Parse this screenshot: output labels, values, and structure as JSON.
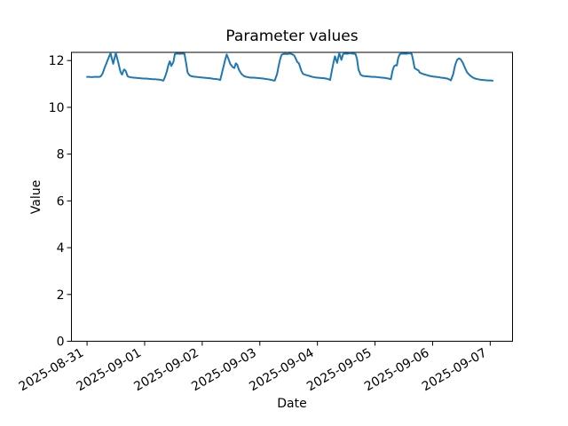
{
  "figure": {
    "background": "#ffffff"
  },
  "chart_data": {
    "type": "line",
    "title": "Parameter values",
    "xlabel": "Date",
    "ylabel": "Value",
    "x_unit": "hours since 2025-08-31 00:00",
    "x_tick_hours": [
      0,
      24,
      48,
      72,
      96,
      120,
      144,
      168
    ],
    "x_tick_labels": [
      "2025-08-31",
      "2025-09-01",
      "2025-09-02",
      "2025-09-03",
      "2025-09-04",
      "2025-09-05",
      "2025-09-06",
      "2025-09-07"
    ],
    "x_tick_rotation_deg": 30,
    "y_ticks": [
      0,
      2,
      4,
      6,
      8,
      10,
      12
    ],
    "ylim": [
      0,
      12.35
    ],
    "xlim_hours": [
      -6.5,
      177.3
    ],
    "grid": false,
    "line_color": "#1f77b4",
    "line_width": 2,
    "series": [
      {
        "points": [
          [
            0,
            11.3
          ],
          [
            1,
            11.3
          ],
          [
            2,
            11.29
          ],
          [
            3,
            11.3
          ],
          [
            4,
            11.3
          ],
          [
            5,
            11.3
          ],
          [
            5.7,
            11.32
          ],
          [
            6.5,
            11.45
          ],
          [
            7,
            11.6
          ],
          [
            7.5,
            11.74
          ],
          [
            8,
            11.86
          ],
          [
            8.5,
            12.0
          ],
          [
            9,
            12.12
          ],
          [
            9.4,
            12.22
          ],
          [
            9.8,
            12.31
          ],
          [
            10.3,
            12.1
          ],
          [
            10.9,
            11.86
          ],
          [
            11.4,
            12.08
          ],
          [
            12,
            12.32
          ],
          [
            12.5,
            12.12
          ],
          [
            13.1,
            11.88
          ],
          [
            13.6,
            11.66
          ],
          [
            14,
            11.5
          ],
          [
            14.6,
            11.4
          ],
          [
            15.1,
            11.55
          ],
          [
            15.5,
            11.62
          ],
          [
            16.1,
            11.56
          ],
          [
            16.6,
            11.42
          ],
          [
            16.9,
            11.33
          ],
          [
            17.5,
            11.3
          ],
          [
            18.5,
            11.28
          ],
          [
            19.5,
            11.27
          ],
          [
            20.5,
            11.26
          ],
          [
            21.5,
            11.25
          ],
          [
            22.5,
            11.24
          ],
          [
            23.5,
            11.23
          ],
          [
            24.5,
            11.23
          ],
          [
            25.5,
            11.22
          ],
          [
            26.5,
            11.21
          ],
          [
            27.5,
            11.2
          ],
          [
            28.5,
            11.2
          ],
          [
            29.5,
            11.19
          ],
          [
            30.5,
            11.18
          ],
          [
            31.2,
            11.16
          ],
          [
            31.8,
            11.14
          ],
          [
            32.5,
            11.3
          ],
          [
            33.2,
            11.52
          ],
          [
            33.9,
            11.81
          ],
          [
            34.5,
            11.97
          ],
          [
            35.1,
            11.77
          ],
          [
            36,
            11.94
          ],
          [
            36.6,
            12.28
          ],
          [
            37.5,
            12.3
          ],
          [
            38.5,
            12.29
          ],
          [
            39.5,
            12.3
          ],
          [
            40.6,
            12.29
          ],
          [
            41.2,
            11.94
          ],
          [
            41.9,
            11.49
          ],
          [
            42.7,
            11.37
          ],
          [
            43.5,
            11.33
          ],
          [
            44.5,
            11.31
          ],
          [
            45.5,
            11.3
          ],
          [
            46.5,
            11.29
          ],
          [
            47.5,
            11.28
          ],
          [
            48.5,
            11.27
          ],
          [
            49.5,
            11.26
          ],
          [
            50.5,
            11.25
          ],
          [
            51.5,
            11.24
          ],
          [
            52.5,
            11.22
          ],
          [
            53.5,
            11.21
          ],
          [
            54.5,
            11.2
          ],
          [
            55.5,
            11.17
          ],
          [
            56.4,
            11.55
          ],
          [
            57,
            11.8
          ],
          [
            57.6,
            12.05
          ],
          [
            58.2,
            12.26
          ],
          [
            59,
            12.05
          ],
          [
            59.7,
            11.85
          ],
          [
            60.7,
            11.72
          ],
          [
            61.4,
            11.68
          ],
          [
            62,
            11.88
          ],
          [
            62.6,
            11.82
          ],
          [
            63.3,
            11.6
          ],
          [
            64.4,
            11.42
          ],
          [
            65.5,
            11.33
          ],
          [
            66.5,
            11.3
          ],
          [
            67.5,
            11.28
          ],
          [
            68.5,
            11.27
          ],
          [
            69.5,
            11.27
          ],
          [
            70.5,
            11.26
          ],
          [
            71.5,
            11.25
          ],
          [
            72.5,
            11.24
          ],
          [
            73.5,
            11.23
          ],
          [
            74.5,
            11.21
          ],
          [
            75.5,
            11.2
          ],
          [
            76.5,
            11.18
          ],
          [
            77.3,
            11.16
          ],
          [
            78.2,
            11.14
          ],
          [
            79.2,
            11.43
          ],
          [
            79.8,
            11.75
          ],
          [
            80.4,
            12.03
          ],
          [
            81,
            12.23
          ],
          [
            81.6,
            12.28
          ],
          [
            82.5,
            12.29
          ],
          [
            83.5,
            12.28
          ],
          [
            84.5,
            12.3
          ],
          [
            85.5,
            12.27
          ],
          [
            86.3,
            12.22
          ],
          [
            86.8,
            12.12
          ],
          [
            87.6,
            11.94
          ],
          [
            88.3,
            11.88
          ],
          [
            89.3,
            11.56
          ],
          [
            90,
            11.43
          ],
          [
            91,
            11.39
          ],
          [
            92,
            11.36
          ],
          [
            93,
            11.33
          ],
          [
            94,
            11.3
          ],
          [
            95,
            11.28
          ],
          [
            96,
            11.27
          ],
          [
            97,
            11.26
          ],
          [
            98,
            11.25
          ],
          [
            99,
            11.24
          ],
          [
            100,
            11.22
          ],
          [
            100.7,
            11.2
          ],
          [
            101.3,
            11.17
          ],
          [
            102,
            11.56
          ],
          [
            102.6,
            11.87
          ],
          [
            103.3,
            12.18
          ],
          [
            104.2,
            11.9
          ],
          [
            105.1,
            12.32
          ],
          [
            106,
            12.03
          ],
          [
            106.7,
            12.28
          ],
          [
            107.5,
            12.3
          ],
          [
            108.5,
            12.29
          ],
          [
            109.5,
            12.31
          ],
          [
            110.5,
            12.3
          ],
          [
            111.9,
            12.28
          ],
          [
            112.5,
            12.06
          ],
          [
            113.1,
            11.62
          ],
          [
            114,
            11.39
          ],
          [
            115,
            11.34
          ],
          [
            116,
            11.33
          ],
          [
            117,
            11.32
          ],
          [
            118,
            11.31
          ],
          [
            119,
            11.3
          ],
          [
            120,
            11.3
          ],
          [
            121,
            11.29
          ],
          [
            122,
            11.28
          ],
          [
            123,
            11.27
          ],
          [
            124,
            11.26
          ],
          [
            125,
            11.24
          ],
          [
            126,
            11.22
          ],
          [
            126.6,
            11.2
          ],
          [
            127.3,
            11.56
          ],
          [
            127.9,
            11.75
          ],
          [
            128.5,
            11.8
          ],
          [
            129.1,
            11.79
          ],
          [
            129.7,
            12.13
          ],
          [
            130.4,
            12.28
          ],
          [
            131.5,
            12.3
          ],
          [
            132.5,
            12.29
          ],
          [
            133.5,
            12.3
          ],
          [
            134.5,
            12.31
          ],
          [
            135.3,
            12.28
          ],
          [
            135.9,
            12.0
          ],
          [
            136.5,
            11.68
          ],
          [
            137.3,
            11.62
          ],
          [
            138.1,
            11.58
          ],
          [
            138.6,
            11.49
          ],
          [
            139.6,
            11.44
          ],
          [
            140.5,
            11.41
          ],
          [
            141.5,
            11.38
          ],
          [
            142.5,
            11.35
          ],
          [
            143.5,
            11.33
          ],
          [
            144.5,
            11.31
          ],
          [
            145.5,
            11.3
          ],
          [
            146.5,
            11.29
          ],
          [
            147.5,
            11.27
          ],
          [
            148.5,
            11.26
          ],
          [
            149.5,
            11.24
          ],
          [
            150.4,
            11.22
          ],
          [
            151,
            11.19
          ],
          [
            151.6,
            11.15
          ],
          [
            152.6,
            11.43
          ],
          [
            153.4,
            11.81
          ],
          [
            154.2,
            12.03
          ],
          [
            155,
            12.09
          ],
          [
            155.7,
            12.05
          ],
          [
            156.6,
            11.9
          ],
          [
            157.5,
            11.68
          ],
          [
            158.4,
            11.49
          ],
          [
            159.5,
            11.37
          ],
          [
            160.8,
            11.27
          ],
          [
            162,
            11.22
          ],
          [
            163,
            11.2
          ],
          [
            164,
            11.18
          ],
          [
            165,
            11.17
          ],
          [
            166,
            11.16
          ],
          [
            167,
            11.15
          ],
          [
            168,
            11.15
          ],
          [
            169,
            11.14
          ]
        ]
      }
    ]
  }
}
